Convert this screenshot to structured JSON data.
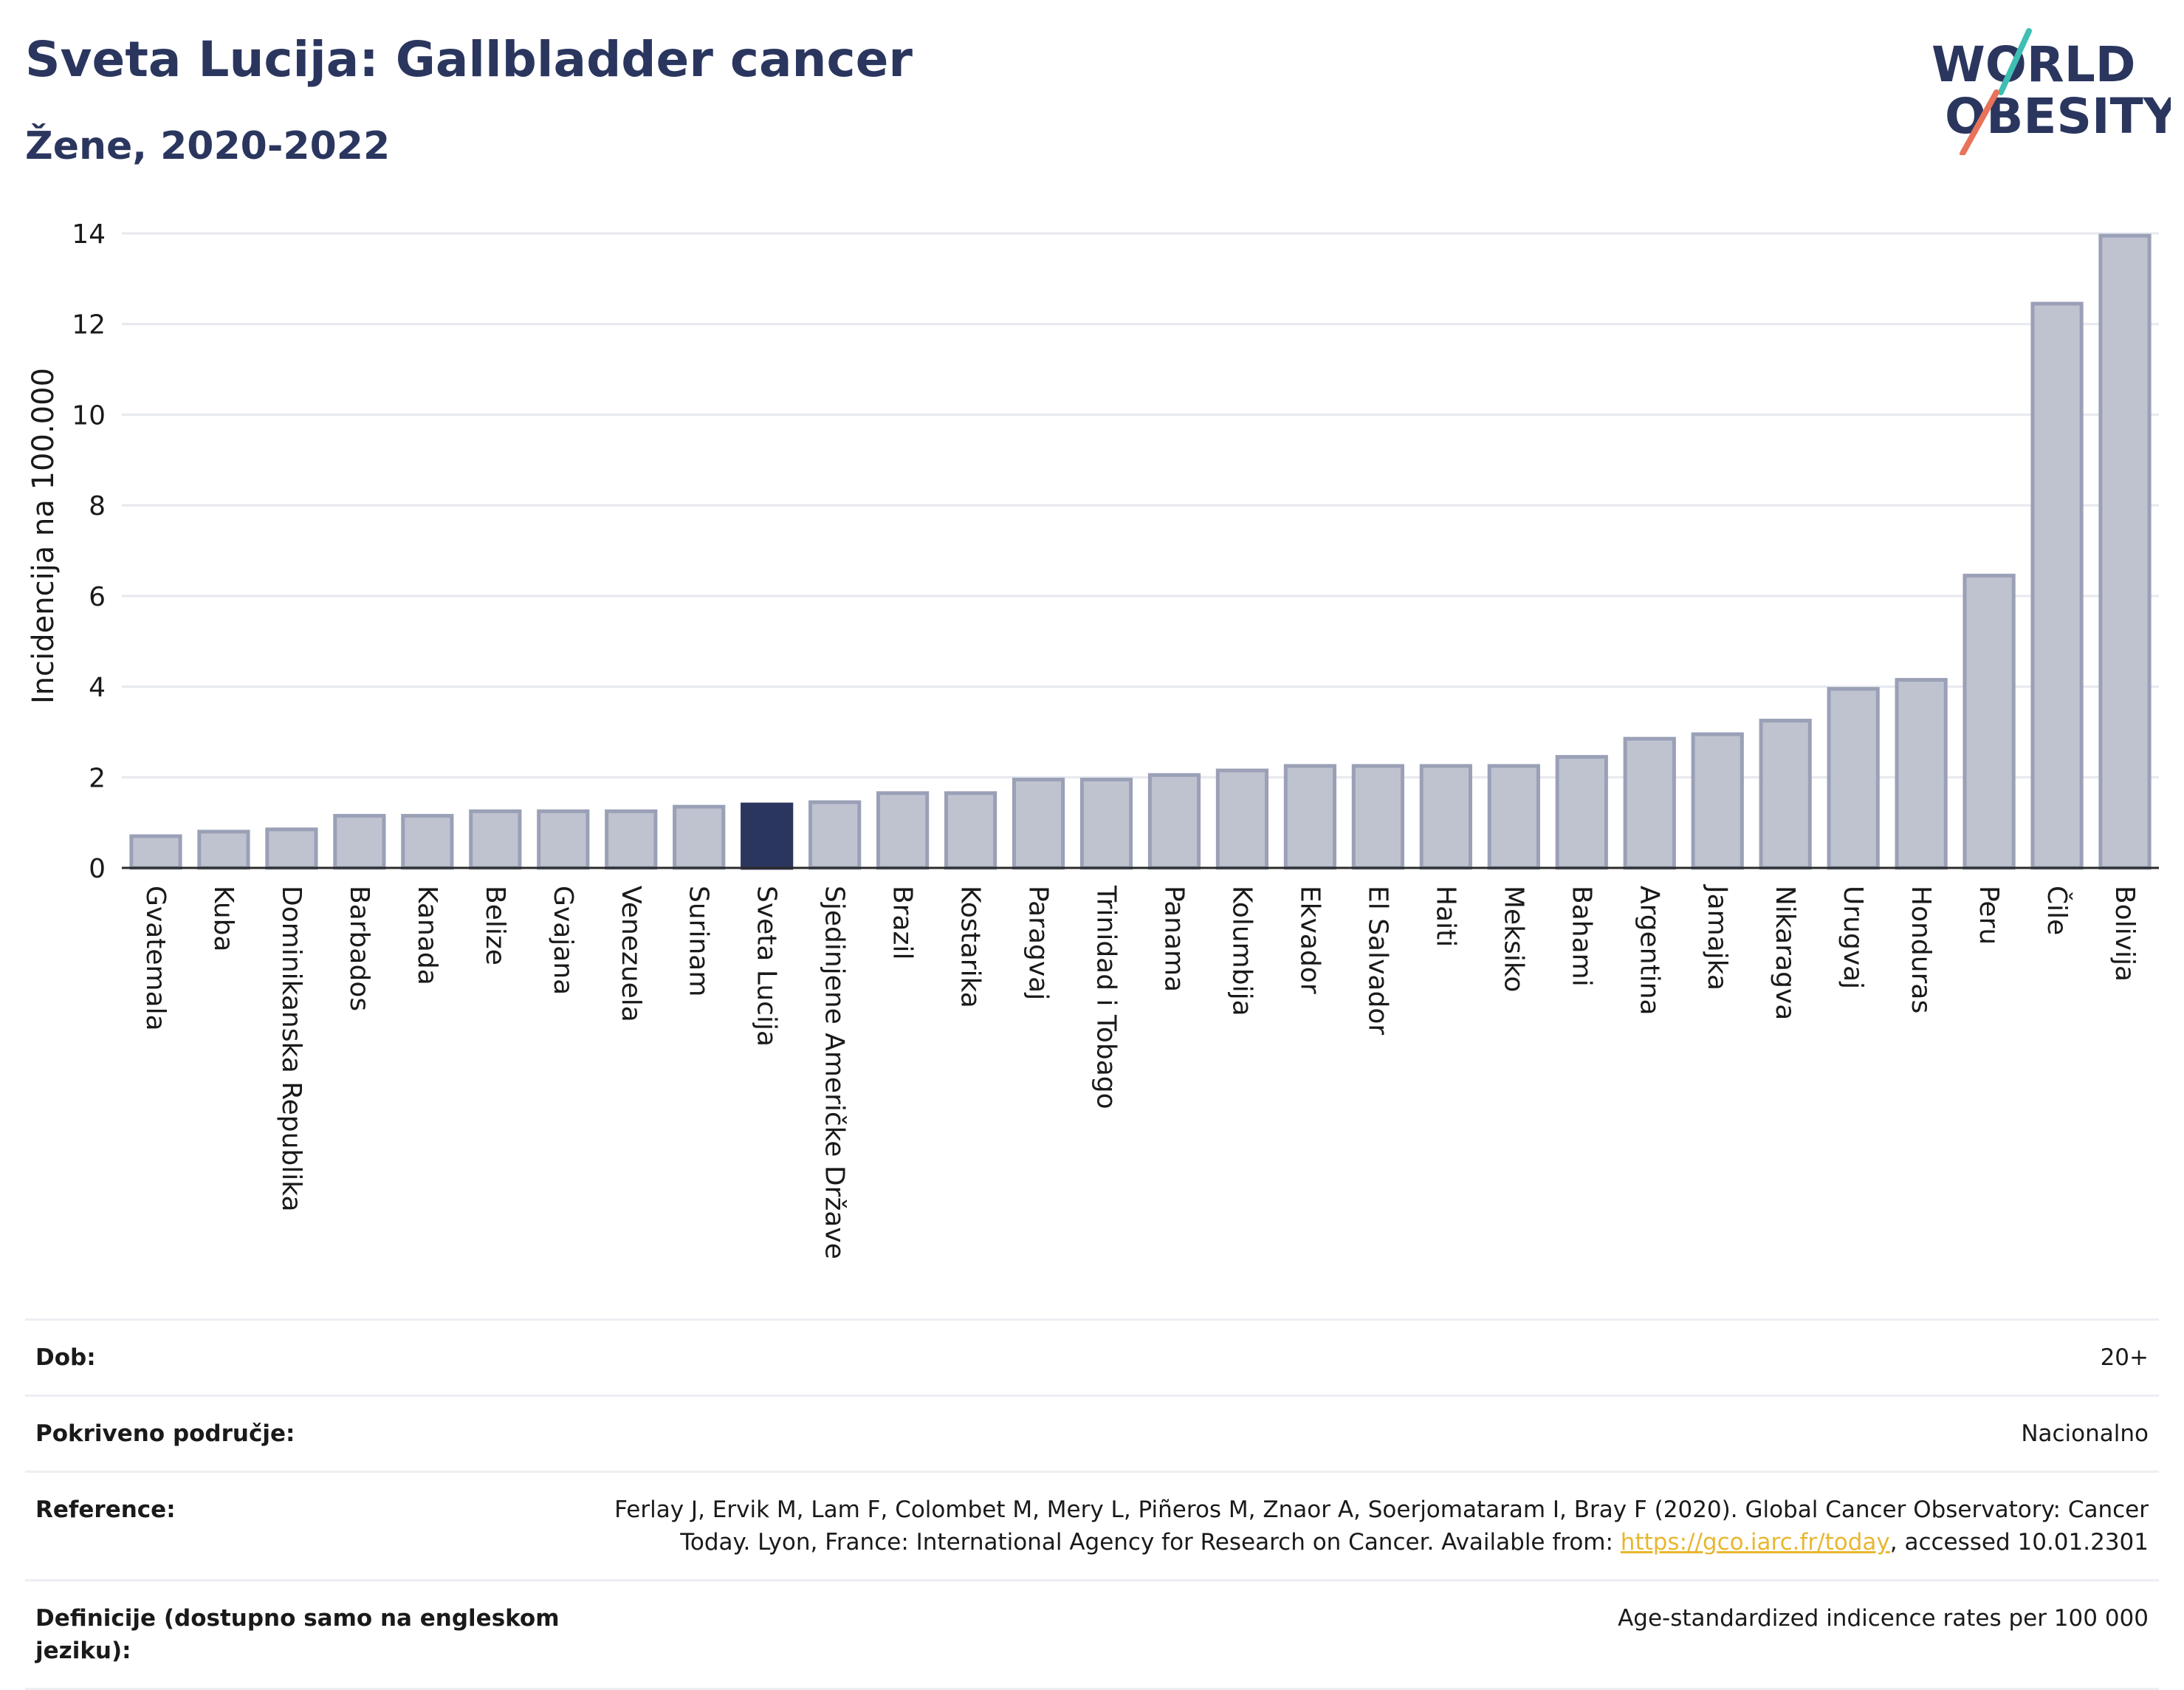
{
  "header": {
    "title": "Sveta Lucija: Gallbladder cancer",
    "subtitle": "Žene, 2020-2022"
  },
  "logo": {
    "line1": "WORLD",
    "line2": "OBESITY",
    "accent_teal": "#3fbfb3",
    "accent_coral": "#e8735a",
    "text_color": "#2b365f"
  },
  "chart_data": {
    "type": "bar",
    "ylabel": "Incidencija na 100.000",
    "xlabel": "",
    "ylim": [
      0,
      14
    ],
    "yticks": [
      0,
      2,
      4,
      6,
      8,
      10,
      12,
      14
    ],
    "grid": true,
    "highlight": "Sveta Lucija",
    "colors": {
      "bar": "#bfc3d0",
      "bar_edge": "#9aa0b6",
      "highlight": "#2b365f"
    },
    "categories": [
      "Gvatemala",
      "Kuba",
      "Dominikanska Republika",
      "Barbados",
      "Kanada",
      "Belize",
      "Gvajana",
      "Venezuela",
      "Surinam",
      "Sveta Lucija",
      "Sjedinjene Američke Države",
      "Brazil",
      "Kostarika",
      "Paragvaj",
      "Trinidad i Tobago",
      "Panama",
      "Kolumbija",
      "Ekvador",
      "El Salvador",
      "Haiti",
      "Meksiko",
      "Bahami",
      "Argentina",
      "Jamajka",
      "Nikaragva",
      "Urugvaj",
      "Honduras",
      "Peru",
      "Čile",
      "Bolivija"
    ],
    "values": [
      0.7,
      0.8,
      0.85,
      1.15,
      1.15,
      1.25,
      1.25,
      1.25,
      1.35,
      1.4,
      1.45,
      1.65,
      1.65,
      1.95,
      1.95,
      2.05,
      2.15,
      2.25,
      2.25,
      2.25,
      2.25,
      2.45,
      2.85,
      2.95,
      3.25,
      3.95,
      4.15,
      6.45,
      12.45,
      13.95
    ]
  },
  "meta": {
    "rows": [
      {
        "key": "Dob:",
        "value": "20+"
      },
      {
        "key": "Pokriveno područje:",
        "value": "Nacionalno"
      },
      {
        "key": "Reference:",
        "value_pre": "Ferlay J, Ervik M, Lam F, Colombet M, Mery L, Piñeros M, Znaor A, Soerjomataram I, Bray F (2020). Global Cancer Observatory: Cancer Today. Lyon, France: International Agency for Research on Cancer. Available from: ",
        "link": "https://gco.iarc.fr/today",
        "value_post": ", accessed 10.01.2301"
      },
      {
        "key": "Definicije (dostupno samo na engleskom jeziku):",
        "value": "Age-standardized indicence rates per 100 000"
      }
    ]
  }
}
